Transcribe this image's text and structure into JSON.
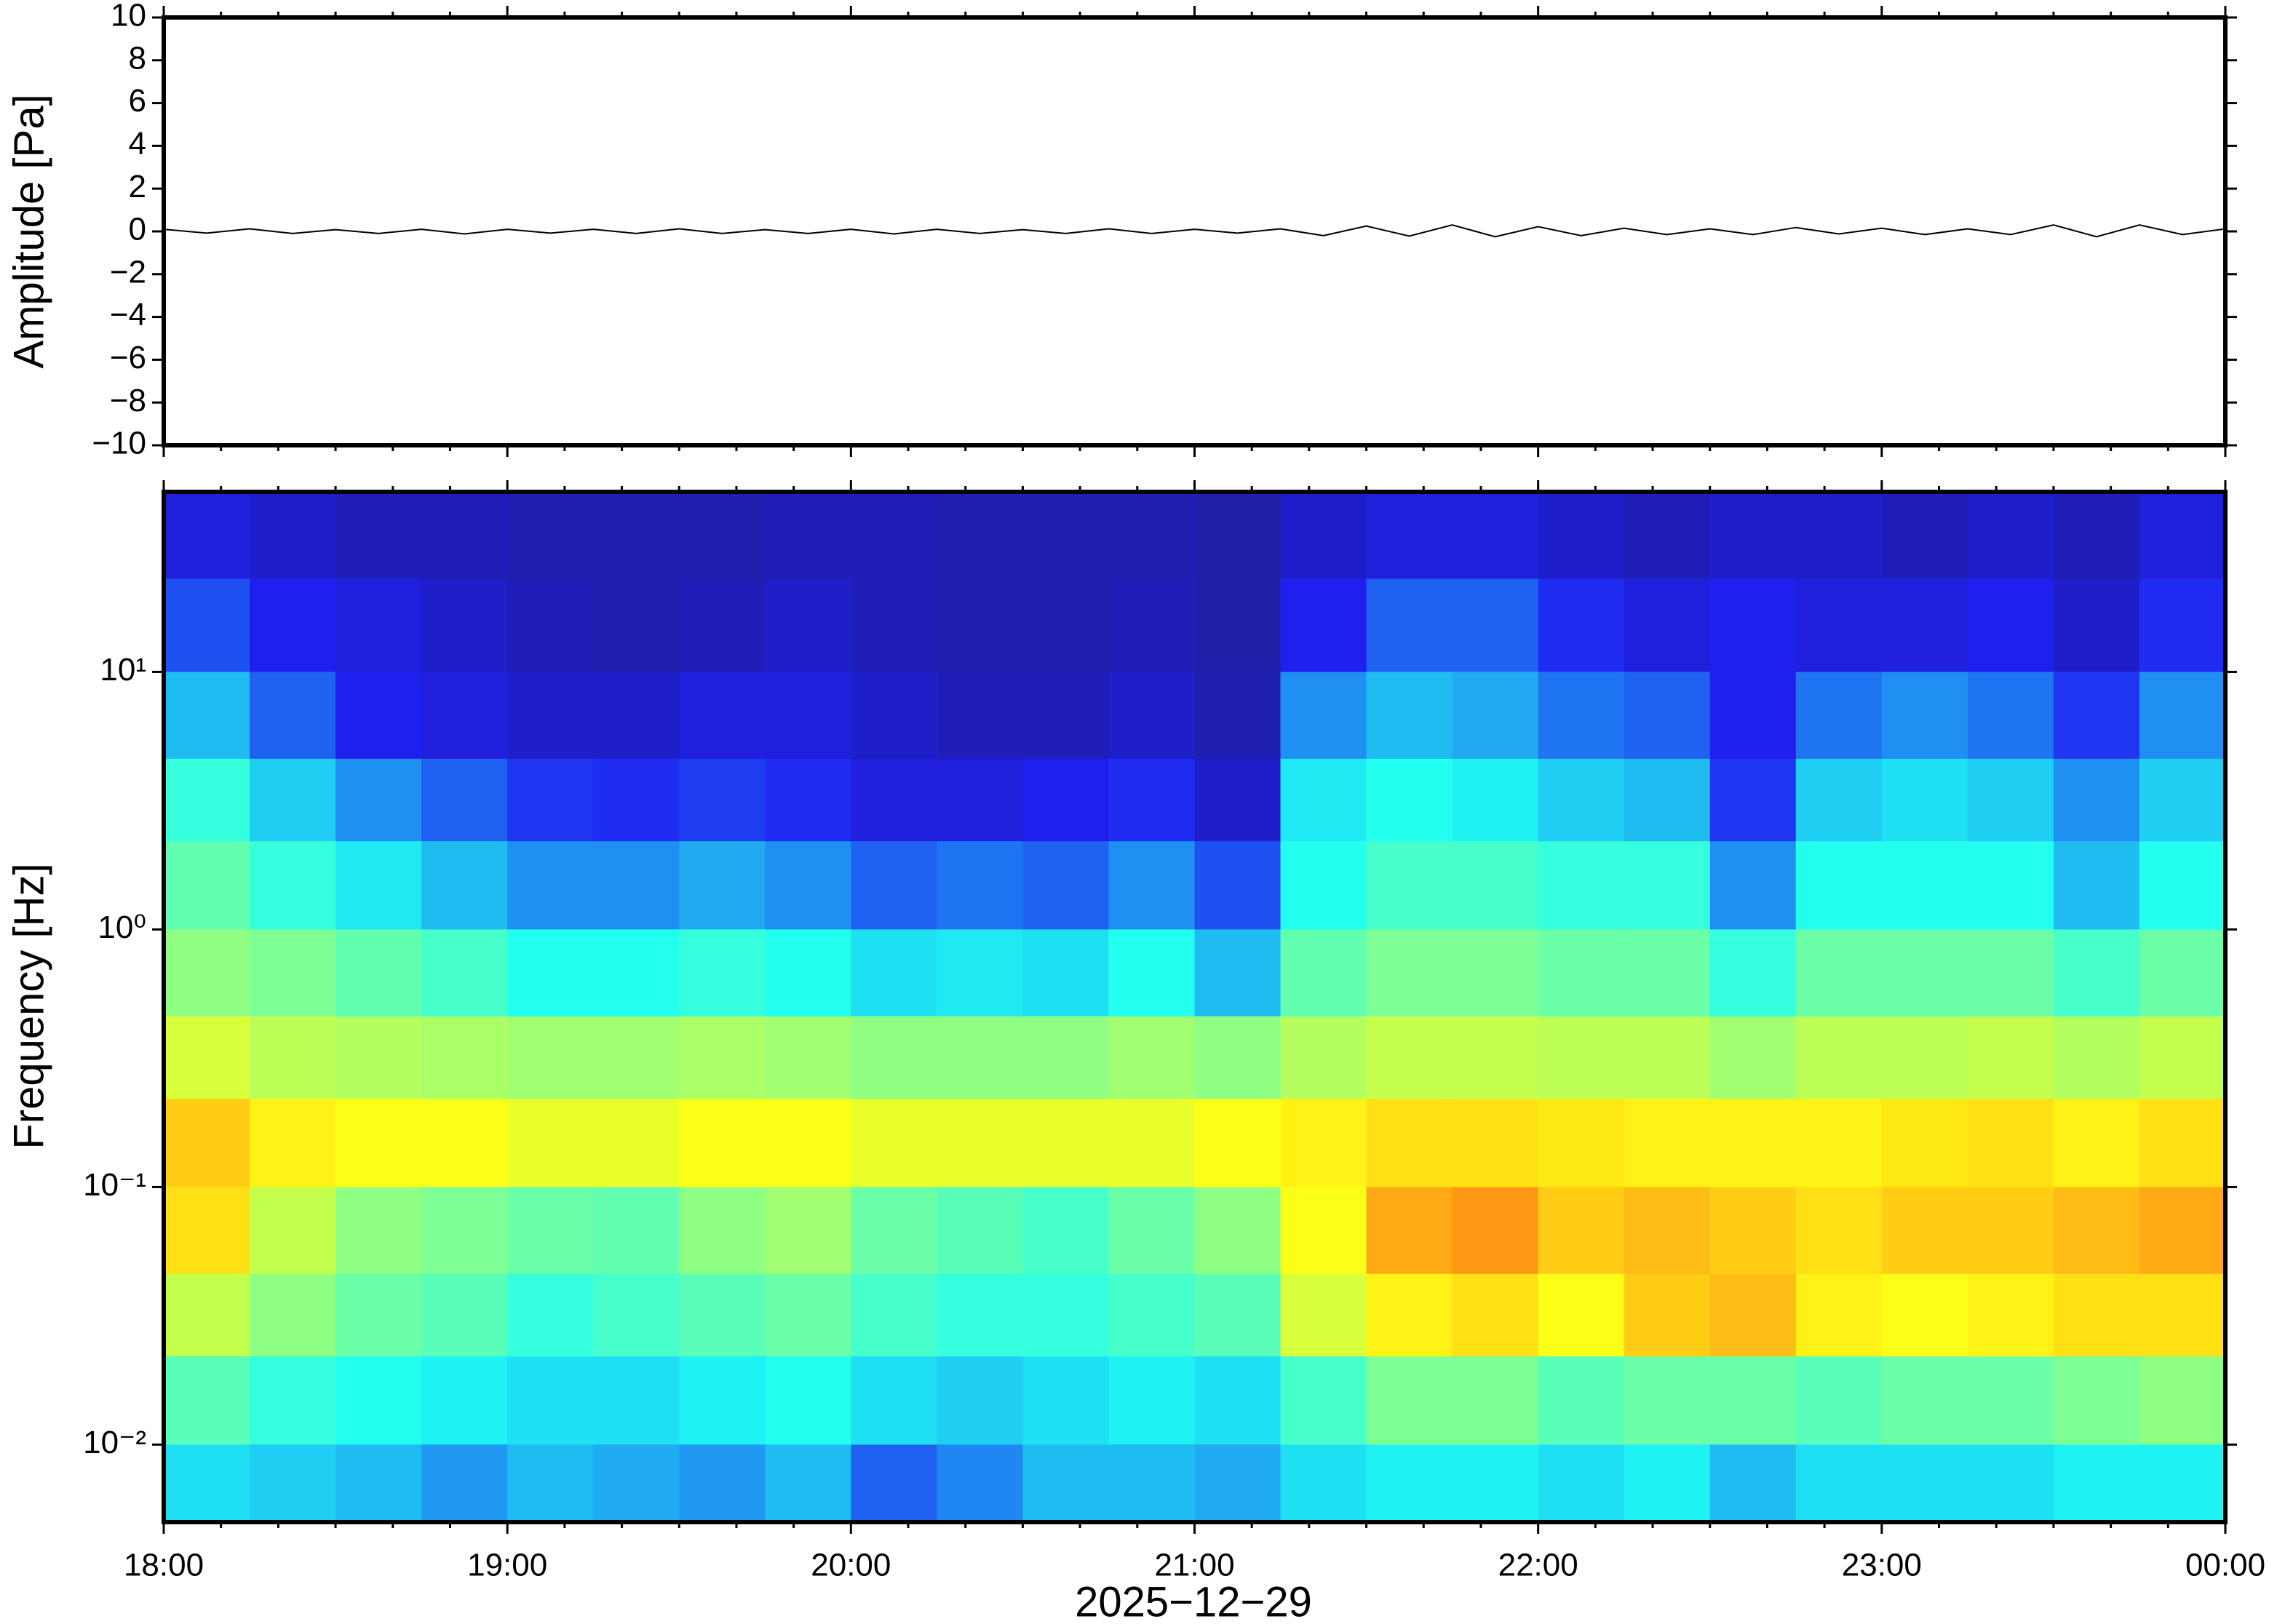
{
  "chart_data": [
    {
      "type": "line",
      "ylabel": "Amplitude [Pa]",
      "color": "#000000",
      "x": [
        18,
        18.125,
        18.25,
        18.375,
        18.5,
        18.625,
        18.75,
        18.875,
        19,
        19.125,
        19.25,
        19.375,
        19.5,
        19.625,
        19.75,
        19.875,
        20,
        20.125,
        20.25,
        20.375,
        20.5,
        20.625,
        20.75,
        20.875,
        21,
        21.125,
        21.25,
        21.375,
        21.5,
        21.625,
        21.75,
        21.875,
        22,
        22.125,
        22.25,
        22.375,
        22.5,
        22.625,
        22.75,
        22.875,
        23,
        23.125,
        23.25,
        23.375,
        23.5,
        23.625,
        23.75,
        23.875,
        24
      ],
      "values": [
        0.1,
        -0.08,
        0.12,
        -0.1,
        0.08,
        -0.1,
        0.1,
        -0.12,
        0.1,
        -0.08,
        0.1,
        -0.1,
        0.12,
        -0.1,
        0.08,
        -0.1,
        0.1,
        -0.12,
        0.1,
        -0.1,
        0.08,
        -0.1,
        0.12,
        -0.1,
        0.1,
        -0.08,
        0.12,
        -0.2,
        0.25,
        -0.22,
        0.3,
        -0.25,
        0.22,
        -0.2,
        0.15,
        -0.15,
        0.12,
        -0.15,
        0.18,
        -0.12,
        0.15,
        -0.15,
        0.12,
        -0.15,
        0.3,
        -0.25,
        0.3,
        -0.15,
        0.12
      ],
      "xlim": [
        18,
        24
      ],
      "ylim": [
        -10,
        10
      ],
      "yticks": [
        {
          "value": -10,
          "label": "−10"
        },
        {
          "value": -8,
          "label": "−8"
        },
        {
          "value": -6,
          "label": "−6"
        },
        {
          "value": -4,
          "label": "−4"
        },
        {
          "value": -2,
          "label": "−2"
        },
        0,
        2,
        4,
        6,
        8,
        10
      ]
    },
    {
      "type": "heatmap",
      "ylabel": "Frequency [Hz]",
      "xlabel": "2025−12−29",
      "yscale": "log",
      "colormap": "jet",
      "xlim": [
        18,
        24
      ],
      "ylim": [
        0.005,
        50
      ],
      "zlim": [
        0,
        1
      ],
      "xminor_per_major": 6,
      "xticks": [
        {
          "value": 18,
          "label": "18:00"
        },
        {
          "value": 19,
          "label": "19:00"
        },
        {
          "value": 20,
          "label": "20:00"
        },
        {
          "value": 21,
          "label": "21:00"
        },
        {
          "value": 22,
          "label": "22:00"
        },
        {
          "value": 23,
          "label": "23:00"
        },
        {
          "value": 24,
          "label": "00:00"
        }
      ],
      "yticks": [
        {
          "value": 0.01,
          "label": "10⁻²"
        },
        {
          "value": 0.1,
          "label": "10⁻¹"
        },
        {
          "value": 1,
          "label": "10⁰"
        },
        {
          "value": 10,
          "label": "10¹"
        }
      ],
      "x_edges": [
        18,
        18.25,
        18.5,
        18.75,
        19,
        19.25,
        19.5,
        19.75,
        20,
        20.25,
        20.5,
        20.75,
        21,
        21.25,
        21.5,
        21.75,
        22,
        22.25,
        22.5,
        22.75,
        23,
        23.25,
        23.5,
        23.75,
        24
      ],
      "y_edges": [
        50,
        23,
        10,
        4.6,
        2.2,
        1,
        0.46,
        0.22,
        0.1,
        0.046,
        0.022,
        0.01,
        0.005
      ],
      "z": [
        [
          0.1,
          0.08,
          0.06,
          0.06,
          0.05,
          0.05,
          0.05,
          0.06,
          0.06,
          0.05,
          0.05,
          0.05,
          0.04,
          0.08,
          0.1,
          0.1,
          0.08,
          0.06,
          0.08,
          0.08,
          0.06,
          0.08,
          0.06,
          0.1
        ],
        [
          0.18,
          0.12,
          0.1,
          0.08,
          0.06,
          0.05,
          0.06,
          0.08,
          0.06,
          0.05,
          0.05,
          0.06,
          0.04,
          0.12,
          0.2,
          0.2,
          0.14,
          0.1,
          0.12,
          0.1,
          0.1,
          0.12,
          0.08,
          0.14
        ],
        [
          0.3,
          0.2,
          0.12,
          0.1,
          0.08,
          0.08,
          0.1,
          0.1,
          0.08,
          0.06,
          0.06,
          0.08,
          0.05,
          0.25,
          0.3,
          0.28,
          0.22,
          0.2,
          0.12,
          0.22,
          0.25,
          0.22,
          0.15,
          0.25
        ],
        [
          0.4,
          0.32,
          0.25,
          0.2,
          0.15,
          0.14,
          0.16,
          0.14,
          0.1,
          0.1,
          0.12,
          0.14,
          0.08,
          0.35,
          0.38,
          0.36,
          0.32,
          0.3,
          0.15,
          0.32,
          0.34,
          0.32,
          0.25,
          0.32
        ],
        [
          0.45,
          0.4,
          0.35,
          0.3,
          0.25,
          0.25,
          0.28,
          0.25,
          0.2,
          0.22,
          0.2,
          0.25,
          0.18,
          0.38,
          0.42,
          0.42,
          0.4,
          0.4,
          0.25,
          0.38,
          0.38,
          0.38,
          0.3,
          0.38
        ],
        [
          0.5,
          0.48,
          0.45,
          0.42,
          0.38,
          0.38,
          0.4,
          0.38,
          0.34,
          0.35,
          0.34,
          0.38,
          0.3,
          0.45,
          0.48,
          0.48,
          0.46,
          0.46,
          0.4,
          0.46,
          0.46,
          0.46,
          0.42,
          0.46
        ],
        [
          0.58,
          0.55,
          0.54,
          0.53,
          0.52,
          0.52,
          0.53,
          0.52,
          0.5,
          0.5,
          0.5,
          0.52,
          0.5,
          0.54,
          0.56,
          0.56,
          0.55,
          0.55,
          0.52,
          0.55,
          0.55,
          0.56,
          0.54,
          0.56
        ],
        [
          0.68,
          0.64,
          0.62,
          0.62,
          0.6,
          0.6,
          0.62,
          0.62,
          0.6,
          0.6,
          0.6,
          0.6,
          0.62,
          0.64,
          0.66,
          0.66,
          0.65,
          0.64,
          0.64,
          0.64,
          0.65,
          0.66,
          0.64,
          0.66
        ],
        [
          0.66,
          0.56,
          0.5,
          0.48,
          0.46,
          0.45,
          0.5,
          0.52,
          0.46,
          0.44,
          0.42,
          0.46,
          0.5,
          0.62,
          0.72,
          0.74,
          0.68,
          0.7,
          0.68,
          0.66,
          0.68,
          0.68,
          0.7,
          0.72
        ],
        [
          0.56,
          0.5,
          0.46,
          0.44,
          0.4,
          0.42,
          0.44,
          0.46,
          0.42,
          0.4,
          0.4,
          0.42,
          0.44,
          0.58,
          0.64,
          0.66,
          0.62,
          0.68,
          0.7,
          0.64,
          0.62,
          0.64,
          0.66,
          0.66
        ],
        [
          0.44,
          0.4,
          0.38,
          0.36,
          0.34,
          0.34,
          0.36,
          0.38,
          0.34,
          0.32,
          0.34,
          0.36,
          0.34,
          0.42,
          0.48,
          0.48,
          0.44,
          0.46,
          0.46,
          0.44,
          0.46,
          0.46,
          0.48,
          0.5
        ],
        [
          0.34,
          0.32,
          0.3,
          0.26,
          0.3,
          0.28,
          0.26,
          0.3,
          0.2,
          0.24,
          0.3,
          0.3,
          0.28,
          0.34,
          0.36,
          0.36,
          0.34,
          0.36,
          0.3,
          0.34,
          0.34,
          0.34,
          0.36,
          0.36
        ]
      ]
    }
  ]
}
